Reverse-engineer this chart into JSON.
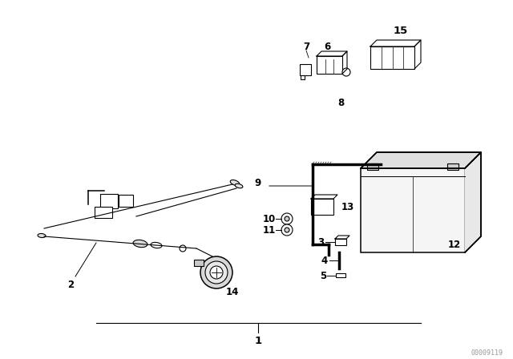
{
  "bg_color": "#ffffff",
  "fig_width": 6.4,
  "fig_height": 4.48,
  "dpi": 100,
  "watermark": "00009119",
  "label_fontsize": 8.5,
  "label_fontweight": "bold"
}
